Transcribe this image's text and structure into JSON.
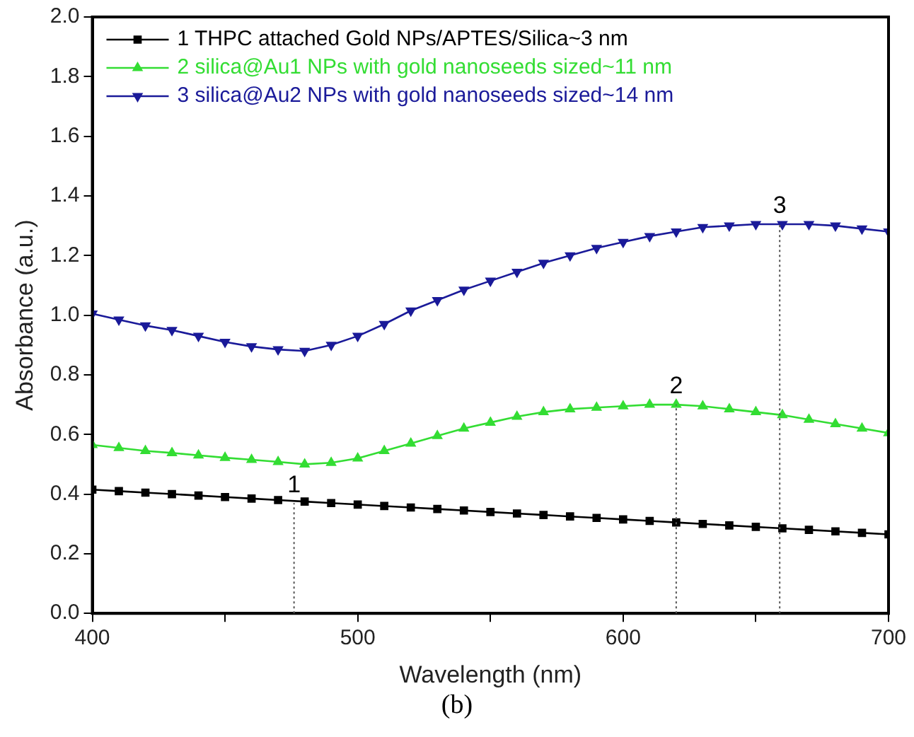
{
  "chart_data": {
    "type": "line",
    "xlabel": "Wavelength (nm)",
    "ylabel": "Absorbance (a.u.)",
    "x": [
      400,
      410,
      420,
      430,
      440,
      450,
      460,
      470,
      480,
      490,
      500,
      510,
      520,
      530,
      540,
      550,
      560,
      570,
      580,
      590,
      600,
      610,
      620,
      630,
      640,
      650,
      660,
      670,
      680,
      690,
      700
    ],
    "series": [
      {
        "name": "1 THPC attached Gold NPs/APTES/Silica~3 nm",
        "color": "#000000",
        "marker": "square",
        "values": [
          0.415,
          0.41,
          0.405,
          0.4,
          0.395,
          0.39,
          0.385,
          0.38,
          0.375,
          0.37,
          0.365,
          0.36,
          0.355,
          0.35,
          0.345,
          0.34,
          0.335,
          0.33,
          0.325,
          0.32,
          0.315,
          0.31,
          0.305,
          0.3,
          0.295,
          0.29,
          0.285,
          0.28,
          0.275,
          0.27,
          0.265
        ]
      },
      {
        "name": "2 silica@Au1 NPs with gold nanoseeds sized~11 nm",
        "color": "#33dd33",
        "marker": "triangle",
        "values": [
          0.565,
          0.555,
          0.545,
          0.538,
          0.53,
          0.522,
          0.515,
          0.508,
          0.5,
          0.505,
          0.52,
          0.545,
          0.57,
          0.595,
          0.62,
          0.64,
          0.66,
          0.675,
          0.685,
          0.69,
          0.695,
          0.7,
          0.7,
          0.695,
          0.685,
          0.675,
          0.665,
          0.65,
          0.635,
          0.62,
          0.605
        ]
      },
      {
        "name": "3 silica@Au2 NPs with gold nanoseeds sized~14 nm",
        "color": "#1a1a99",
        "marker": "triangle_down",
        "values": [
          1.005,
          0.985,
          0.965,
          0.95,
          0.93,
          0.91,
          0.895,
          0.885,
          0.88,
          0.9,
          0.93,
          0.97,
          1.015,
          1.05,
          1.085,
          1.115,
          1.145,
          1.175,
          1.2,
          1.225,
          1.245,
          1.265,
          1.28,
          1.295,
          1.3,
          1.305,
          1.305,
          1.305,
          1.3,
          1.29,
          1.28
        ]
      }
    ],
    "xlim": [
      400,
      700
    ],
    "xticks": [
      400,
      {
        "value": 450,
        "label": null
      },
      500,
      {
        "value": 550,
        "label": null
      },
      600,
      {
        "value": 650,
        "label": null
      },
      700
    ],
    "ylim": [
      0,
      2
    ],
    "yticks": [
      {
        "value": 0,
        "label": "0.0"
      },
      0.2,
      0.4,
      0.6,
      0.8,
      {
        "value": 1,
        "label": "1.0"
      },
      1.2,
      1.4,
      1.6,
      1.8,
      {
        "value": 2,
        "label": "2.0"
      }
    ],
    "legend": "top left",
    "line_style": "solid",
    "annotations": [
      {
        "text": "1",
        "x": 476,
        "y": 0.37
      },
      {
        "text": "2",
        "x": 620,
        "y": 0.7
      },
      {
        "text": "3",
        "x": 659,
        "y": 1.305
      },
      "(b)"
    ]
  }
}
